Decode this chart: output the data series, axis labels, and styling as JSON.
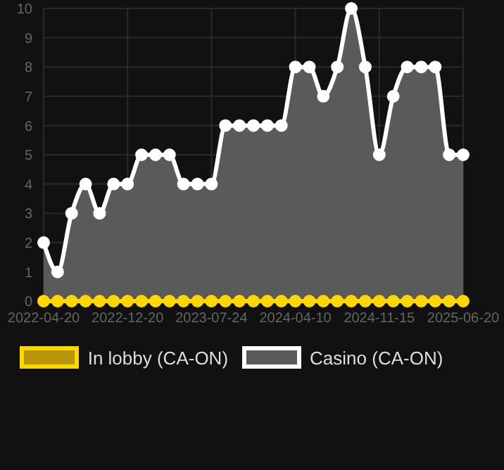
{
  "chart_data": {
    "type": "area",
    "categories": [
      "2022-04-20",
      null,
      null,
      null,
      null,
      null,
      "2022-12-20",
      null,
      null,
      null,
      null,
      null,
      "2023-07-24",
      null,
      null,
      null,
      null,
      null,
      "2024-04-10",
      null,
      null,
      null,
      null,
      null,
      "2024-11-15",
      null,
      null,
      null,
      null,
      null,
      "2025-06-20"
    ],
    "series": [
      {
        "name": "In lobby (CA-ON)",
        "type": "line",
        "color": "#ffd700",
        "values": [
          0,
          0,
          0,
          0,
          0,
          0,
          0,
          0,
          0,
          0,
          0,
          0,
          0,
          0,
          0,
          0,
          0,
          0,
          0,
          0,
          0,
          0,
          0,
          0,
          0,
          0,
          0,
          0,
          0,
          0,
          0
        ]
      },
      {
        "name": "Casino (CA-ON)",
        "color": "#ffffff",
        "values": [
          2,
          1,
          3,
          4,
          3,
          4,
          4,
          5,
          5,
          5,
          4,
          4,
          4,
          6,
          6,
          6,
          6,
          6,
          8,
          8,
          7,
          8,
          10,
          8,
          5,
          7,
          8,
          8,
          8,
          5,
          5
        ]
      }
    ],
    "ylim": [
      0,
      10
    ],
    "yticks": [
      0,
      1,
      2,
      3,
      4,
      5,
      6,
      7,
      8,
      9,
      10
    ],
    "grid": true,
    "legend": "bottom",
    "marker": "circle"
  }
}
